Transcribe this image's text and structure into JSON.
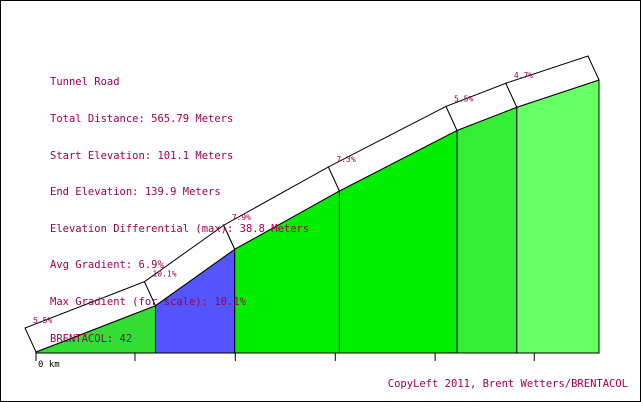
{
  "info": {
    "road": "Tunnel Road",
    "total_distance": "Total Distance: 565.79 Meters",
    "start_elevation": "Start Elevation: 101.1 Meters",
    "end_elevation": "End Elevation: 139.9 Meters",
    "elevation_differential": "Elevation Differential (max): 38.8 Meters",
    "avg_gradient": "Avg Gradient: 6.9%",
    "max_gradient": "Max Gradient (for scale): 10.1%",
    "brentacol": "BRENTACOL: 42"
  },
  "copyright": "CopyLeft 2011, Brent Wetters/BRENTACOL",
  "colors": {
    "text": "#a0004e",
    "segment_fills": [
      "#33dd33",
      "#5555ff",
      "#00ee00",
      "#00ee00",
      "#33ee33",
      "#66ff66"
    ]
  },
  "chart_data": {
    "type": "area",
    "title": "Tunnel Road",
    "x_unit": "m",
    "start_elevation_m": 101.1,
    "end_elevation_m": 139.9,
    "total_distance_m": 565.79,
    "segments": [
      {
        "label": "5.5%",
        "gradient": 5.5,
        "distance_m": 69.5
      },
      {
        "label": "10.1%",
        "gradient": 10.1,
        "distance_m": 46.1
      },
      {
        "label": "7.9%",
        "gradient": 7.9,
        "distance_m": 60.9
      },
      {
        "label": "7.3%",
        "gradient": 7.3,
        "distance_m": 68.4
      },
      {
        "label": "5.5%",
        "gradient": 5.5,
        "distance_m": 34.8
      },
      {
        "label": "4.7%",
        "gradient": 4.7,
        "distance_m": 47.8
      }
    ],
    "x_tick_labels": [
      "0 km"
    ],
    "x_ticks_m": [
      0,
      57.4,
      115.6,
      173.6,
      231.5,
      289.0
    ]
  }
}
